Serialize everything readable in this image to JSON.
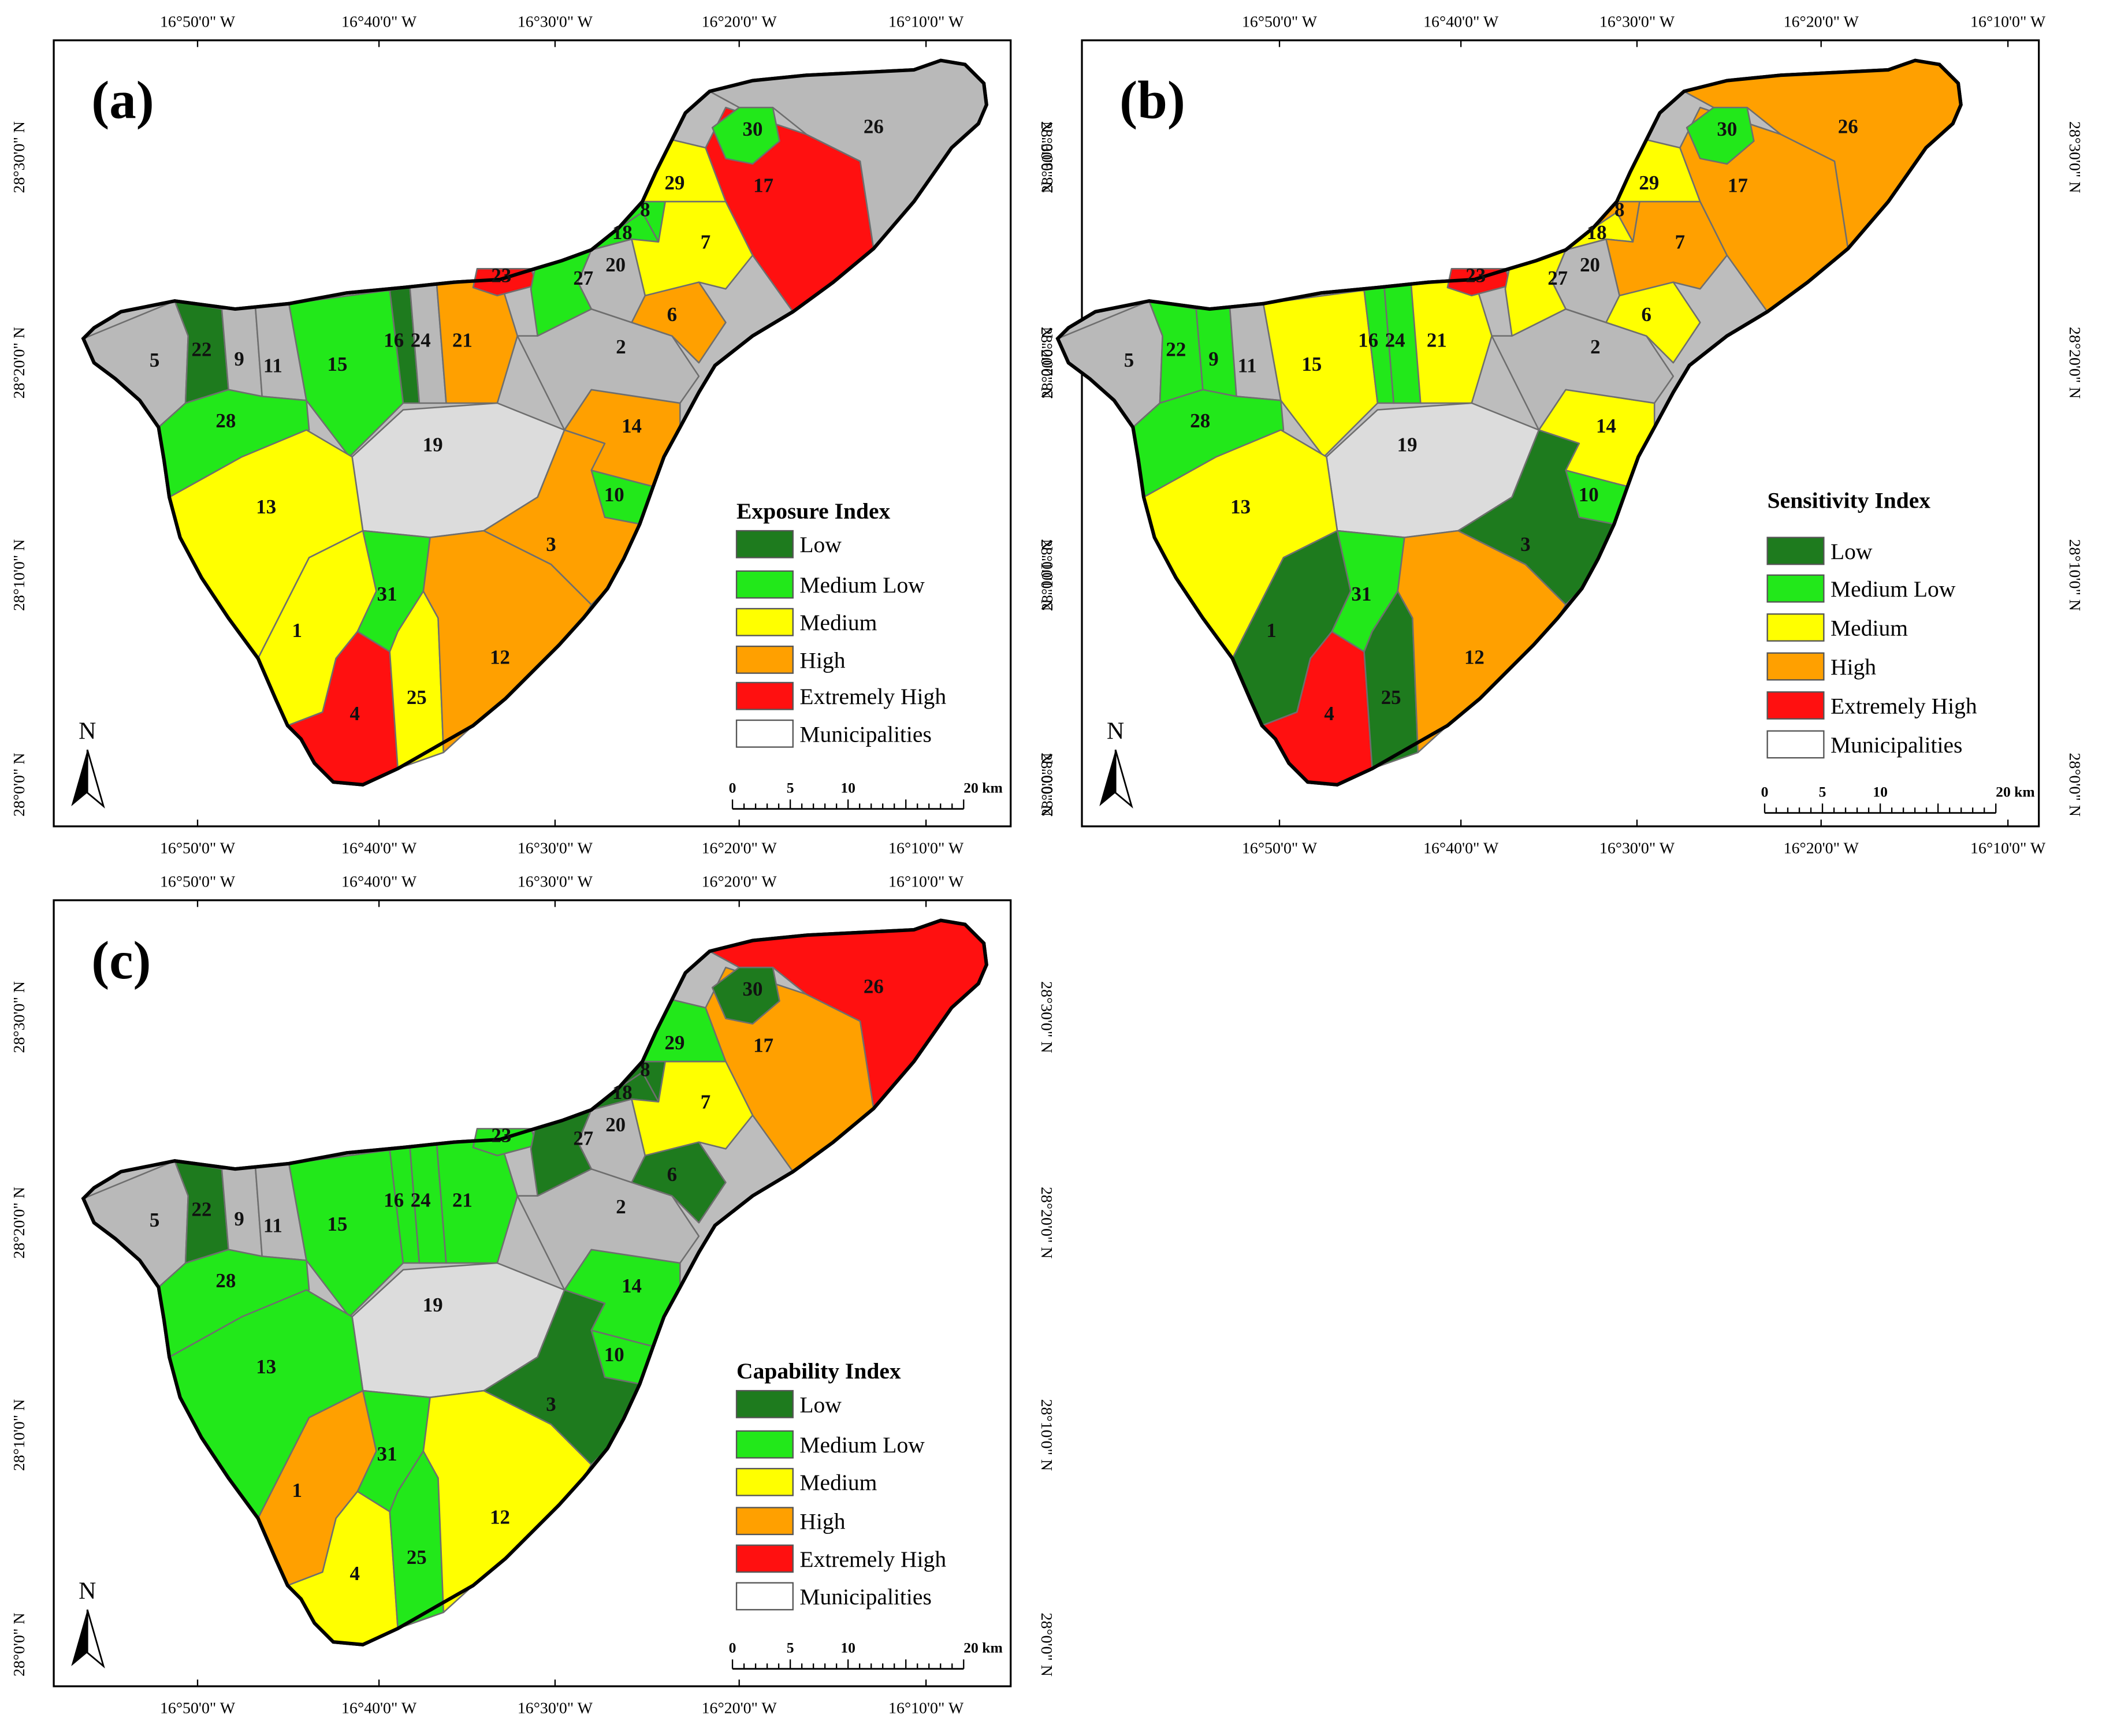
{
  "panels": [
    {
      "id": "a",
      "label": "(a)",
      "legend_title": "Exposure Index",
      "classes": {
        "1": "yellow",
        "2": "gray",
        "3": "orange",
        "4": "red",
        "5": "gray",
        "6": "orange",
        "7": "yellow",
        "8": "lightgreen",
        "9": "gray",
        "10": "lightgreen",
        "11": "gray",
        "12": "orange",
        "13": "yellow",
        "14": "orange",
        "15": "lightgreen",
        "16": "darkgreen",
        "17": "red",
        "18": "lightgreen",
        "19": "light",
        "20": "gray",
        "21": "orange",
        "22": "darkgreen",
        "23": "red",
        "24": "gray",
        "25": "yellow",
        "26": "gray",
        "27": "lightgreen",
        "28": "lightgreen",
        "29": "yellow",
        "30": "lightgreen",
        "31": "lightgreen"
      }
    },
    {
      "id": "b",
      "label": "(b)",
      "legend_title": "Sensitivity Index",
      "classes": {
        "1": "darkgreen",
        "2": "gray",
        "3": "darkgreen",
        "4": "red",
        "5": "gray",
        "6": "yellow",
        "7": "orange",
        "8": "orange",
        "9": "lightgreen",
        "10": "lightgreen",
        "11": "gray",
        "12": "orange",
        "13": "yellow",
        "14": "yellow",
        "15": "yellow",
        "16": "lightgreen",
        "17": "orange",
        "18": "yellow",
        "19": "light",
        "20": "gray",
        "21": "yellow",
        "22": "lightgreen",
        "23": "red",
        "24": "lightgreen",
        "25": "darkgreen",
        "26": "orange",
        "27": "yellow",
        "28": "lightgreen",
        "29": "yellow",
        "30": "lightgreen",
        "31": "lightgreen"
      }
    },
    {
      "id": "c",
      "label": "(c)",
      "legend_title": "Capability Index",
      "classes": {
        "1": "orange",
        "2": "gray",
        "3": "darkgreen",
        "4": "yellow",
        "5": "gray",
        "6": "darkgreen",
        "7": "yellow",
        "8": "darkgreen",
        "9": "gray",
        "10": "lightgreen",
        "11": "gray",
        "12": "yellow",
        "13": "lightgreen",
        "14": "lightgreen",
        "15": "lightgreen",
        "16": "lightgreen",
        "17": "orange",
        "18": "darkgreen",
        "19": "light",
        "20": "gray",
        "21": "lightgreen",
        "22": "darkgreen",
        "23": "lightgreen",
        "24": "lightgreen",
        "25": "lightgreen",
        "26": "red",
        "27": "darkgreen",
        "28": "lightgreen",
        "29": "lightgreen",
        "30": "darkgreen",
        "31": "lightgreen"
      }
    }
  ],
  "legend_items": [
    {
      "key": "darkgreen",
      "label": "Low",
      "color": "#1e7b1e"
    },
    {
      "key": "lightgreen",
      "label": "Medium Low",
      "color": "#22e81a"
    },
    {
      "key": "yellow",
      "label": "Medium",
      "color": "#ffff00"
    },
    {
      "key": "orange",
      "label": "High",
      "color": "#ffa000"
    },
    {
      "key": "red",
      "label": "Extremely High",
      "color": "#ff1010"
    },
    {
      "key": "municipalities",
      "label": "Municipalities",
      "color": "#ffffff"
    }
  ],
  "base_colors": {
    "gray": "#b9b9b9",
    "light": "#dcdcdc"
  },
  "longitude_ticks": [
    "16°50'0\" W",
    "16°40'0\" W",
    "16°30'0\" W",
    "16°20'0\" W",
    "16°10'0\" W"
  ],
  "latitude_ticks": [
    "28°30'0\" N",
    "28°20'0\" N",
    "28°10'0\" N",
    "28°0'0\" N"
  ],
  "scale_bar": {
    "labels": [
      "0",
      "5",
      "10",
      "20 km"
    ]
  },
  "north_label": "N"
}
